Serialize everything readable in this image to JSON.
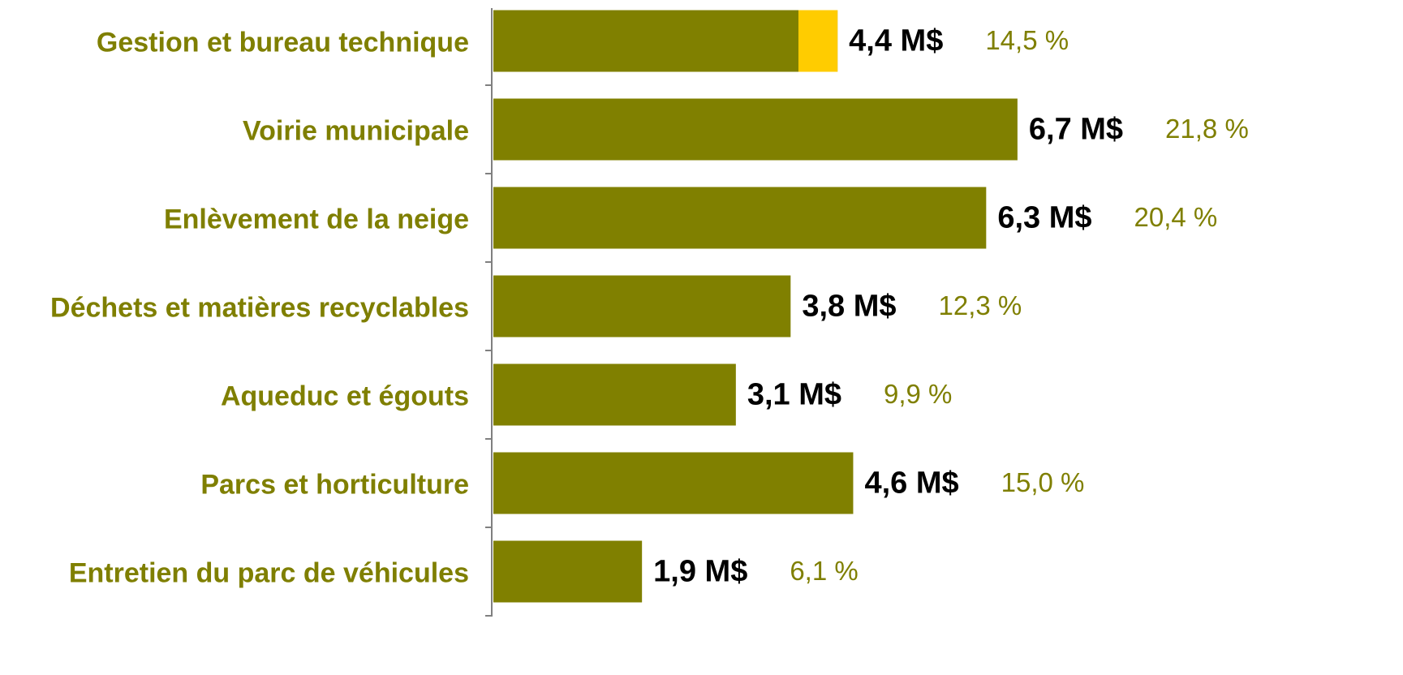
{
  "chart_data": {
    "type": "barh",
    "categories": [
      "Gestion et bureau technique",
      "Voirie municipale",
      "Enlèvement de la neige",
      "Déchets et matières recyclables",
      "Aqueduc et égouts",
      "Parcs et horticulture",
      "Entretien du parc de véhicules"
    ],
    "values": [
      4.4,
      6.7,
      6.3,
      3.8,
      3.1,
      4.6,
      1.9
    ],
    "value_labels": [
      "4,4 M$",
      "6,7 M$",
      "6,3 M$",
      "3,8 M$",
      "3,1 M$",
      "4,6 M$",
      "1,9 M$"
    ],
    "shares": [
      14.5,
      21.8,
      20.4,
      12.3,
      9.9,
      15.0,
      6.1
    ],
    "share_labels": [
      "14,5 %",
      "21,8 %",
      "20,4 %",
      "12,3 %",
      "9,9 %",
      "15,0 %",
      "6,1 %"
    ],
    "color": "#808000",
    "highlight": {
      "index": 0,
      "value": 0.5,
      "color": "#ffcc00"
    },
    "xlim": [
      0,
      7.5
    ]
  }
}
